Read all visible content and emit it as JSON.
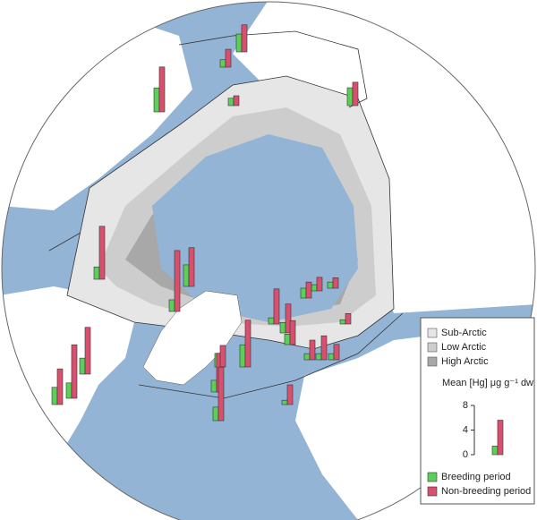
{
  "zones": [
    {
      "name": "Sub-Arctic",
      "color": "#e6e6e6"
    },
    {
      "name": "Low Arctic",
      "color": "#cdcdcd"
    },
    {
      "name": "High Arctic",
      "color": "#a8a8a8"
    }
  ],
  "chart_data": {
    "type": "bar",
    "y_label": "Mean [Hg] μg g⁻¹ dw",
    "ylim": [
      0,
      8
    ],
    "yticks": [
      0,
      4,
      8
    ],
    "example_values": [
      1.4,
      5.6
    ],
    "series": [
      {
        "name": "Breeding period",
        "color": "#5ccf5a",
        "values": [
          2.9,
          1.2,
          3.9,
          1.2,
          2.9,
          2.0,
          1.9,
          3.5,
          2.8,
          2.5,
          2.6,
          1.9,
          2.2,
          3.6,
          2.2,
          1.0,
          1.7,
          1.7,
          1.6,
          1.0,
          1.0,
          0.7,
          1.0,
          1.0,
          1.0,
          0.7
        ]
      },
      {
        "name": "Non-breeding period",
        "color": "#d9506f",
        "values": [
          4.4,
          2.9,
          7.3,
          1.6,
          3.8,
          8.6,
          9.9,
          6.3,
          5.8,
          8.7,
          7.6,
          6.3,
          3.5,
          7.6,
          8.7,
          5.7,
          4.7,
          3.9,
          2.6,
          2.2,
          1.7,
          1.7,
          3.2,
          3.9,
          2.5,
          3.2
        ]
      }
    ]
  }
}
